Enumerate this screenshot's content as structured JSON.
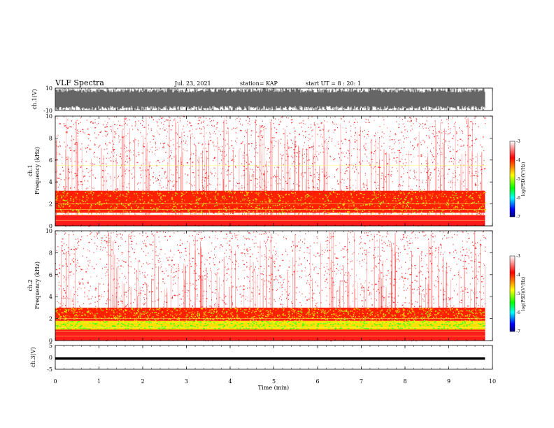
{
  "header": {
    "title": "VLF Spectra",
    "date": "Jul. 23, 2021",
    "station": "station= KAP",
    "start": "start UT = 8 : 20: 1"
  },
  "chart_data": [
    {
      "type": "line",
      "name": "ch1-waveform",
      "ylabel": "ch.1(V)",
      "ylim": [
        -10,
        10
      ],
      "yticks": [
        "10",
        "-10"
      ],
      "xlim": [
        0,
        10
      ],
      "data_end_min": 9.83
    },
    {
      "type": "heatmap",
      "name": "ch1-spectrogram",
      "ylabel": "ch.1\nFrequency (kHz)",
      "ylabel_lines": [
        "ch.1",
        "Frequency (kHz)"
      ],
      "ylim": [
        0,
        10
      ],
      "yticks": [
        "0",
        "2",
        "4",
        "6",
        "8",
        "10"
      ],
      "xlim": [
        0,
        10
      ],
      "colorbar": {
        "label": "log(PSD)(V²/Hz)",
        "range": [
          -7,
          -3
        ],
        "ticks": [
          "-3",
          "-4",
          "-5",
          "-6",
          "-7"
        ],
        "colors": [
          "#ffffff",
          "#ff0000",
          "#ffff00",
          "#00ff00",
          "#00ffff",
          "#0000ff",
          "#000080"
        ]
      },
      "bands_khz": {
        "active": [
          1.2,
          3.2
        ],
        "lines": [
          0.5,
          1.0,
          1.5,
          2.0,
          5.5
        ]
      }
    },
    {
      "type": "heatmap",
      "name": "ch2-spectrogram",
      "ylabel": "ch.2\nFrequency (kHz)",
      "ylabel_lines": [
        "ch.2",
        "Frequency (kHz)"
      ],
      "ylim": [
        0,
        10
      ],
      "yticks": [
        "0",
        "2",
        "4",
        "6",
        "8",
        "10"
      ],
      "xlim": [
        0,
        10
      ],
      "colorbar": {
        "label": "log(PSD)(V²/Hz)",
        "range": [
          -7,
          -3
        ],
        "ticks": [
          "-3",
          "-4",
          "-5",
          "-6",
          "-7"
        ],
        "colors": [
          "#ffffff",
          "#ff0000",
          "#ffff00",
          "#00ff00",
          "#00ffff",
          "#0000ff",
          "#000080"
        ]
      },
      "bands_khz": {
        "green": [
          0.8,
          1.8
        ],
        "active": [
          1.8,
          3.0
        ],
        "lines": [
          0.4,
          0.8,
          1.2,
          1.6,
          2.0
        ]
      }
    },
    {
      "type": "line",
      "name": "ch3-waveform",
      "ylabel": "ch.3(V)",
      "ylim": [
        -5,
        5
      ],
      "yticks": [
        "5",
        "0",
        "-5"
      ],
      "xlim": [
        0,
        10
      ],
      "band_v": [
        -1,
        0
      ],
      "data_end_min": 9.83
    }
  ],
  "xaxis": {
    "label": "Time (min)",
    "ticks": [
      "0",
      "1",
      "2",
      "3",
      "4",
      "5",
      "6",
      "7",
      "8",
      "9",
      "10"
    ]
  }
}
